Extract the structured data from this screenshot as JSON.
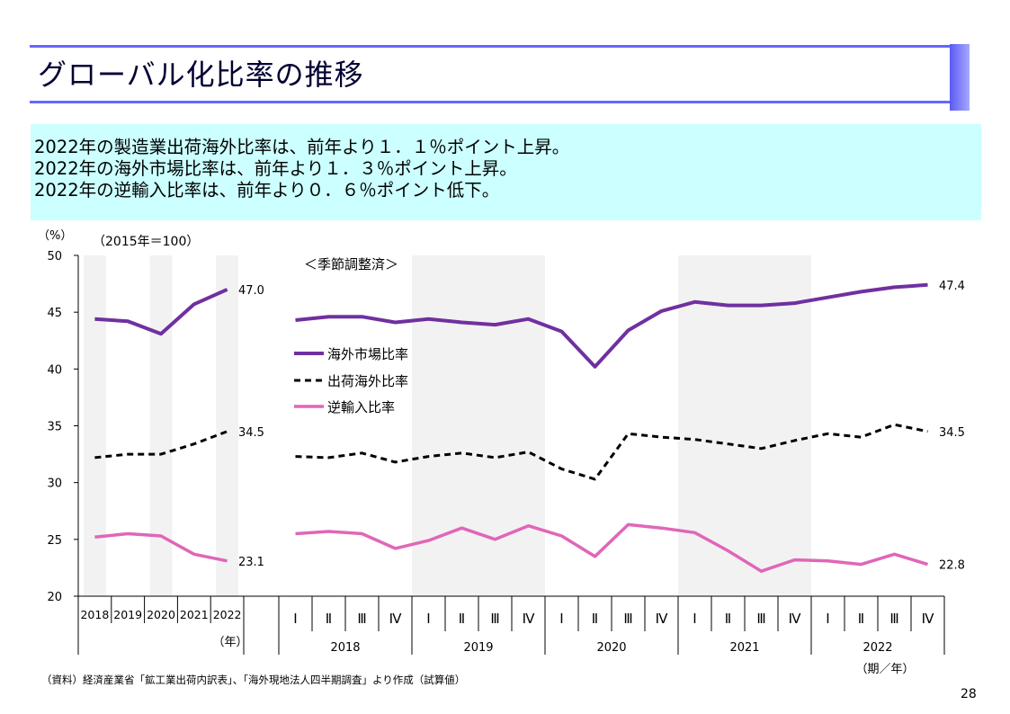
{
  "slide": {
    "title": "グローバル化比率の推移",
    "page_number": "28"
  },
  "summary": [
    "2022年の製造業出荷海外比率は、前年より１．１％ポイント上昇。",
    "2022年の海外市場比率は、前年より１．３％ポイント上昇。",
    "2022年の逆輸入比率は、前年より０．６％ポイント低下。"
  ],
  "chart_data": {
    "type": "line",
    "unit_label": "（%）",
    "base_note": "（2015年＝100）",
    "adjust_note": "＜季節調整済＞",
    "ylim": [
      20,
      50
    ],
    "yticks": [
      20,
      25,
      30,
      35,
      40,
      45,
      50
    ],
    "annual": {
      "x": [
        "2018",
        "2019",
        "2020",
        "2021",
        "2022"
      ],
      "axis_label": "（年）",
      "series": [
        {
          "name": "海外市場比率",
          "values": [
            44.4,
            44.2,
            43.1,
            45.7,
            47.0
          ],
          "end_label": "47.0"
        },
        {
          "name": "出荷海外比率",
          "values": [
            32.2,
            32.5,
            32.5,
            33.4,
            34.5
          ],
          "end_label": "34.5"
        },
        {
          "name": "逆輸入比率",
          "values": [
            25.2,
            25.5,
            25.3,
            23.7,
            23.1
          ],
          "end_label": "23.1"
        }
      ]
    },
    "quarterly": {
      "quarters": [
        "Ⅰ",
        "Ⅱ",
        "Ⅲ",
        "Ⅳ"
      ],
      "years": [
        "2018",
        "2019",
        "2020",
        "2021",
        "2022"
      ],
      "axis_label": "（期／年）",
      "series": [
        {
          "name": "海外市場比率",
          "values": [
            44.3,
            44.6,
            44.6,
            44.1,
            44.4,
            44.1,
            43.9,
            44.4,
            43.3,
            40.2,
            43.4,
            45.1,
            45.9,
            45.6,
            45.6,
            45.8,
            46.3,
            46.8,
            47.2,
            47.4
          ],
          "end_label": "47.4"
        },
        {
          "name": "出荷海外比率",
          "values": [
            32.3,
            32.2,
            32.6,
            31.8,
            32.3,
            32.6,
            32.2,
            32.7,
            31.2,
            30.3,
            34.3,
            34.0,
            33.8,
            33.4,
            33.0,
            33.7,
            34.3,
            34.0,
            35.1,
            34.5
          ],
          "end_label": "34.5"
        },
        {
          "name": "逆輸入比率",
          "values": [
            25.5,
            25.7,
            25.5,
            24.2,
            24.9,
            26.0,
            25.0,
            26.2,
            25.3,
            23.5,
            26.3,
            26.0,
            25.6,
            24.0,
            22.2,
            23.2,
            23.1,
            22.8,
            23.7,
            22.8
          ],
          "end_label": "22.8"
        }
      ]
    },
    "legend": {
      "placement": "upper-left of quarterly panel",
      "items": [
        "海外市場比率",
        "出荷海外比率",
        "逆輸入比率"
      ]
    },
    "source_note": "（資料）経済産業省「鉱工業出荷内訳表」、「海外現地法人四半期調査」より作成（試算値）"
  },
  "colors": {
    "overseas_market": "#7030a0",
    "shipment_overseas": "#000000",
    "reverse_import": "#e066b8",
    "band": "#f2f2f2",
    "summary_bg": "#ccffff",
    "title_rule": "#6666ff"
  }
}
